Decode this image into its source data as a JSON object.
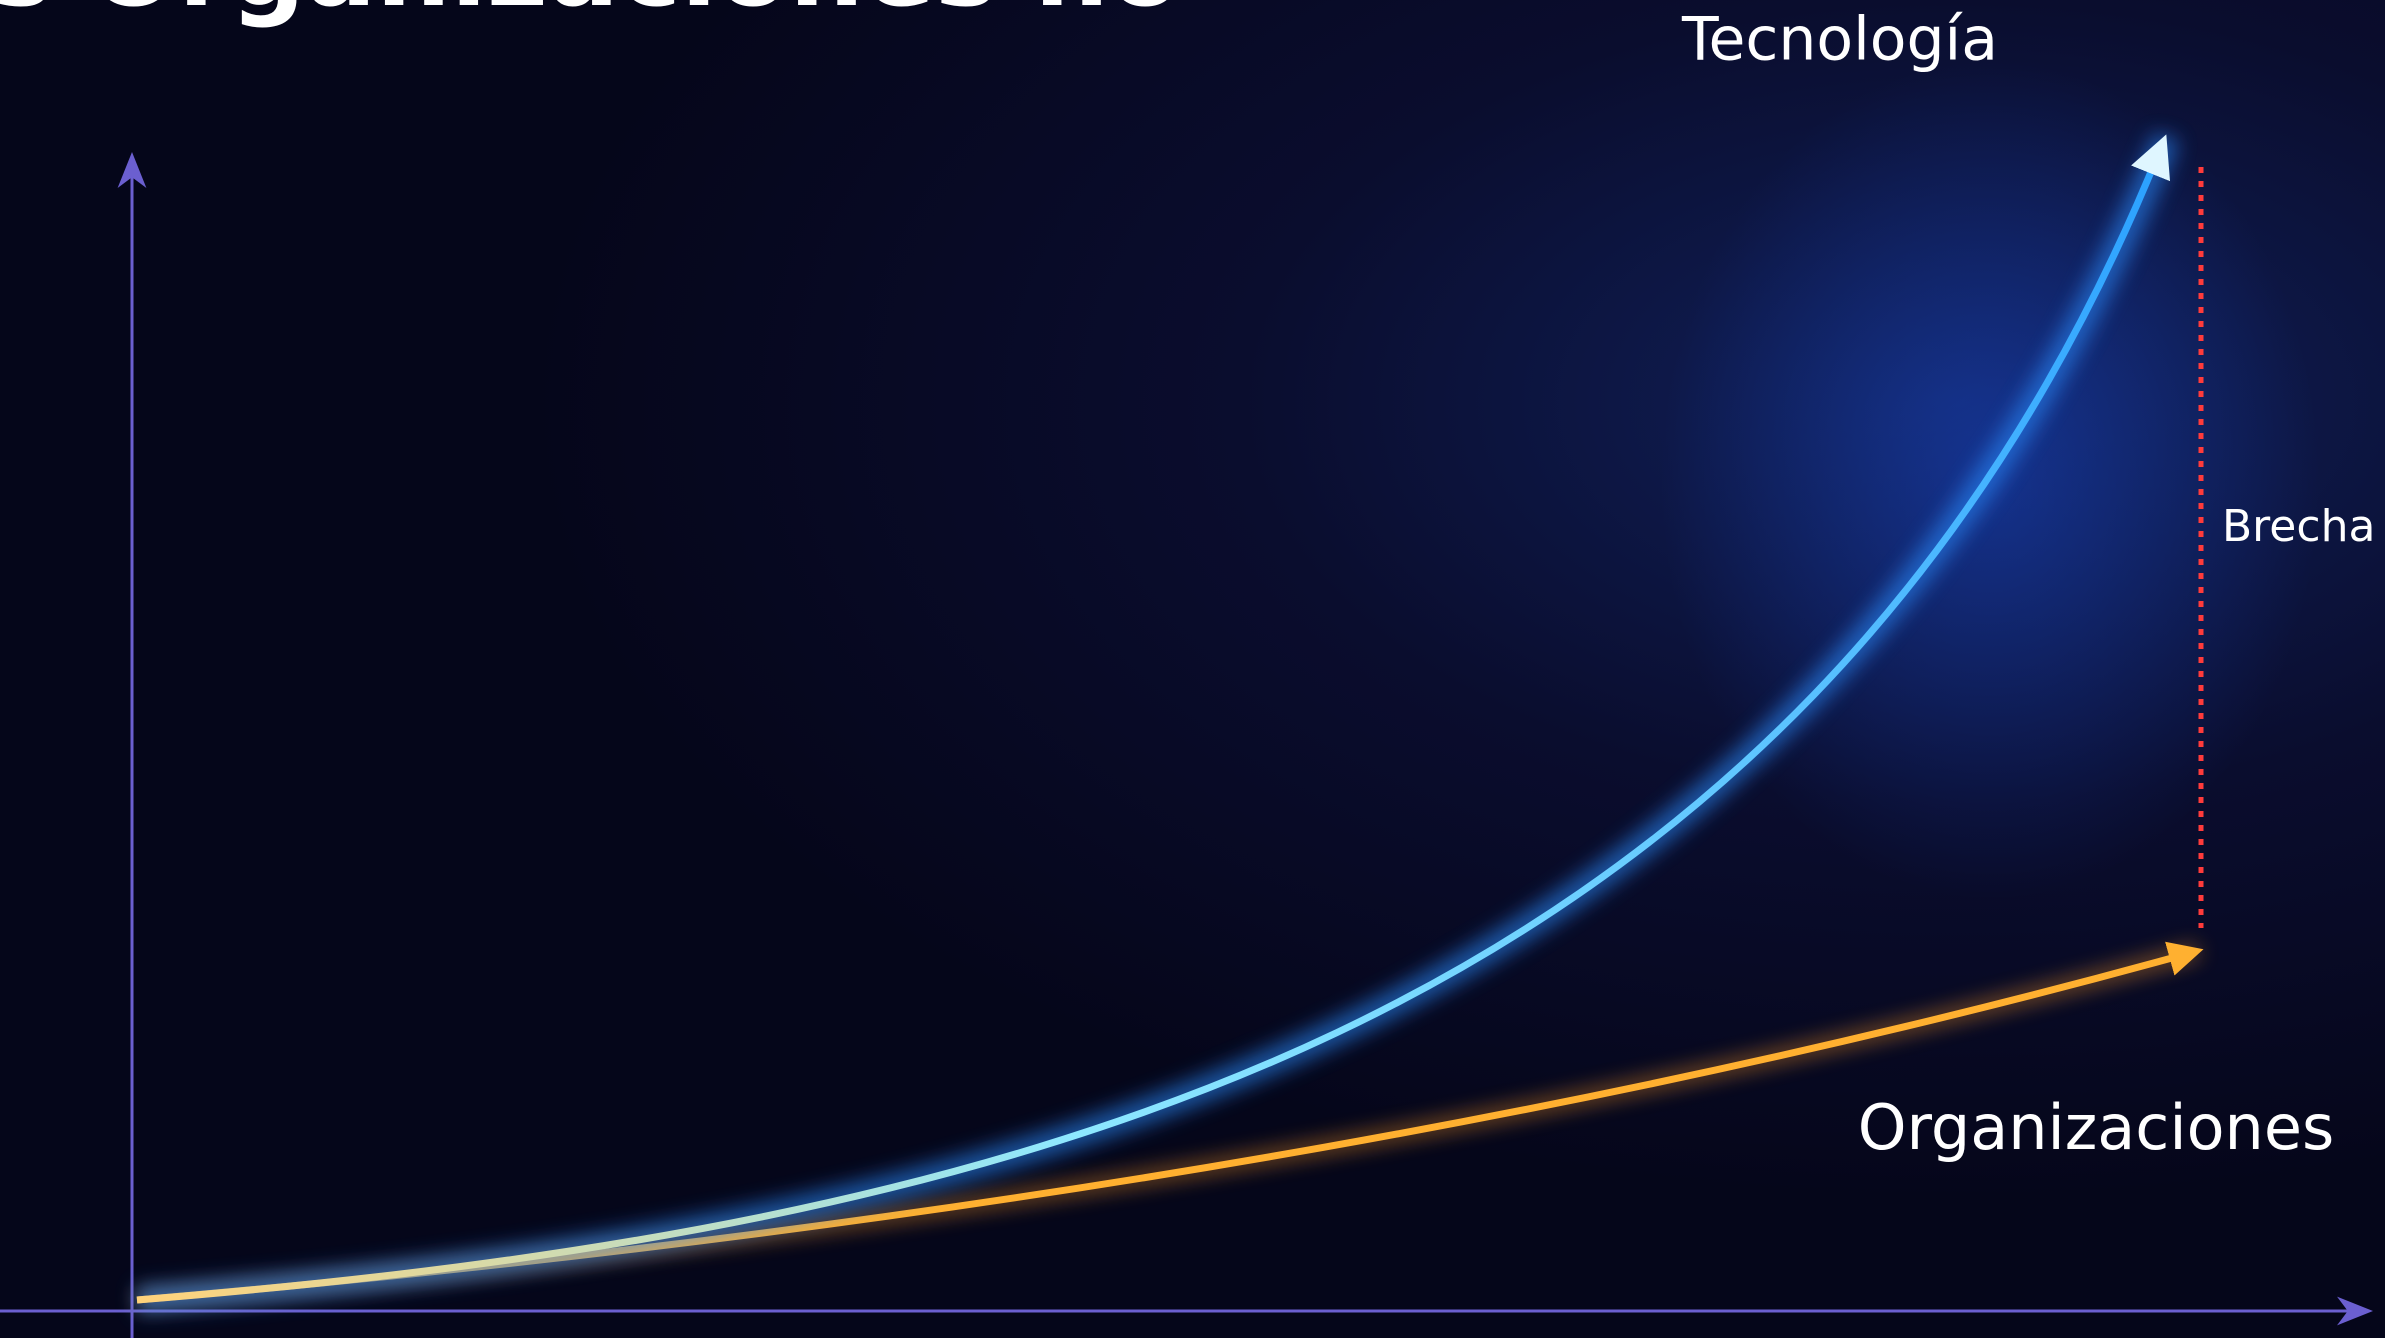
{
  "header": {
    "title": "s Organizaciones no"
  },
  "labels": {
    "technology": "Tecnología",
    "gap": "Brecha",
    "organizations": "Organizaciones"
  }
}
